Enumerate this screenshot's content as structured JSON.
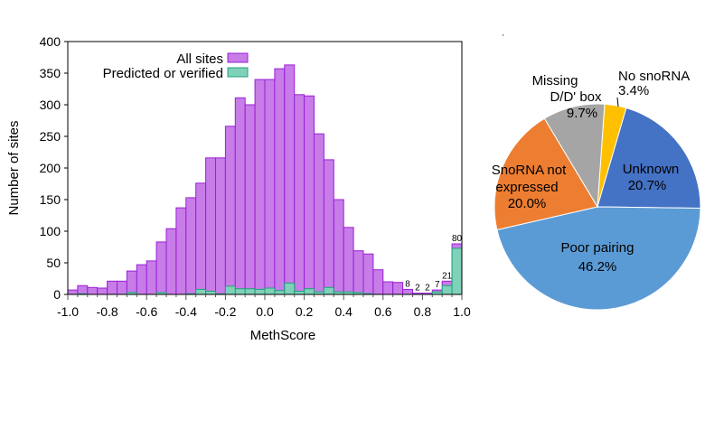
{
  "chart_data": [
    {
      "type": "bar",
      "xlabel": "MethScore",
      "ylabel": "Number of sites",
      "xlim": [
        -1.0,
        1.0
      ],
      "ylim": [
        0,
        400
      ],
      "bin_width": 0.05,
      "x_ticks": [
        "-1.0",
        "-0.8",
        "-0.6",
        "-0.4",
        "-0.2",
        "0.0",
        "0.2",
        "0.4",
        "0.6",
        "0.8",
        "1.0"
      ],
      "y_ticks": [
        "0",
        "50",
        "100",
        "150",
        "200",
        "250",
        "300",
        "350",
        "400"
      ],
      "legend_position": "top-left",
      "series": [
        {
          "name": "All sites",
          "color": "#c77ce8",
          "edge": "#9b1fd6",
          "values": [
            7,
            14,
            11,
            10,
            21,
            21,
            37,
            47,
            53,
            83,
            104,
            137,
            153,
            176,
            216,
            216,
            266,
            311,
            300,
            340,
            340,
            357,
            363,
            316,
            314,
            254,
            213,
            150,
            106,
            69,
            64,
            39,
            20,
            19,
            8,
            2,
            2,
            7,
            21,
            80
          ]
        },
        {
          "name": "Predicted or verified",
          "color": "#7fd1b9",
          "edge": "#1fa37a",
          "values": [
            0,
            1,
            0,
            0,
            0,
            0,
            3,
            0,
            0,
            3,
            0,
            0,
            1,
            8,
            5,
            1,
            13,
            9,
            9,
            8,
            10,
            6,
            18,
            5,
            9,
            4,
            11,
            4,
            4,
            3,
            1,
            0,
            0,
            0,
            0,
            0,
            0,
            4,
            14,
            73
          ]
        }
      ],
      "bar_labels": [
        {
          "bin": 34,
          "text": "8"
        },
        {
          "bin": 35,
          "text": "2"
        },
        {
          "bin": 36,
          "text": "2"
        },
        {
          "bin": 37,
          "text": "7"
        },
        {
          "bin": 38,
          "text": "21"
        },
        {
          "bin": 39,
          "text": "80"
        }
      ]
    },
    {
      "type": "pie",
      "slices": [
        {
          "label": "No snoRNA",
          "value": 3.4,
          "text": "3.4%",
          "color": "#ffc000"
        },
        {
          "label": "Unknown",
          "value": 20.7,
          "text": "20.7%",
          "color": "#4472c4"
        },
        {
          "label": "Poor pairing",
          "value": 46.2,
          "text": "46.2%",
          "color": "#5b9bd5"
        },
        {
          "label": "SnoRNA not expressed",
          "value": 20.0,
          "text": "20.0%",
          "color": "#ed7d31"
        },
        {
          "label": "Missing D/D' box",
          "value": 9.7,
          "text": "9.7%",
          "color": "#a5a5a5"
        }
      ]
    }
  ],
  "pie_label_lines": {
    "no_snorna": [
      "No snoRNA",
      "3.4%"
    ],
    "unknown": [
      "Unknown",
      "20.7%"
    ],
    "poor": [
      "Poor pairing",
      "46.2%"
    ],
    "notexp": [
      "SnoRNA not",
      "expressed",
      "20.0%"
    ],
    "missing": [
      "Missing",
      "D/D' box",
      "9.7%"
    ]
  }
}
